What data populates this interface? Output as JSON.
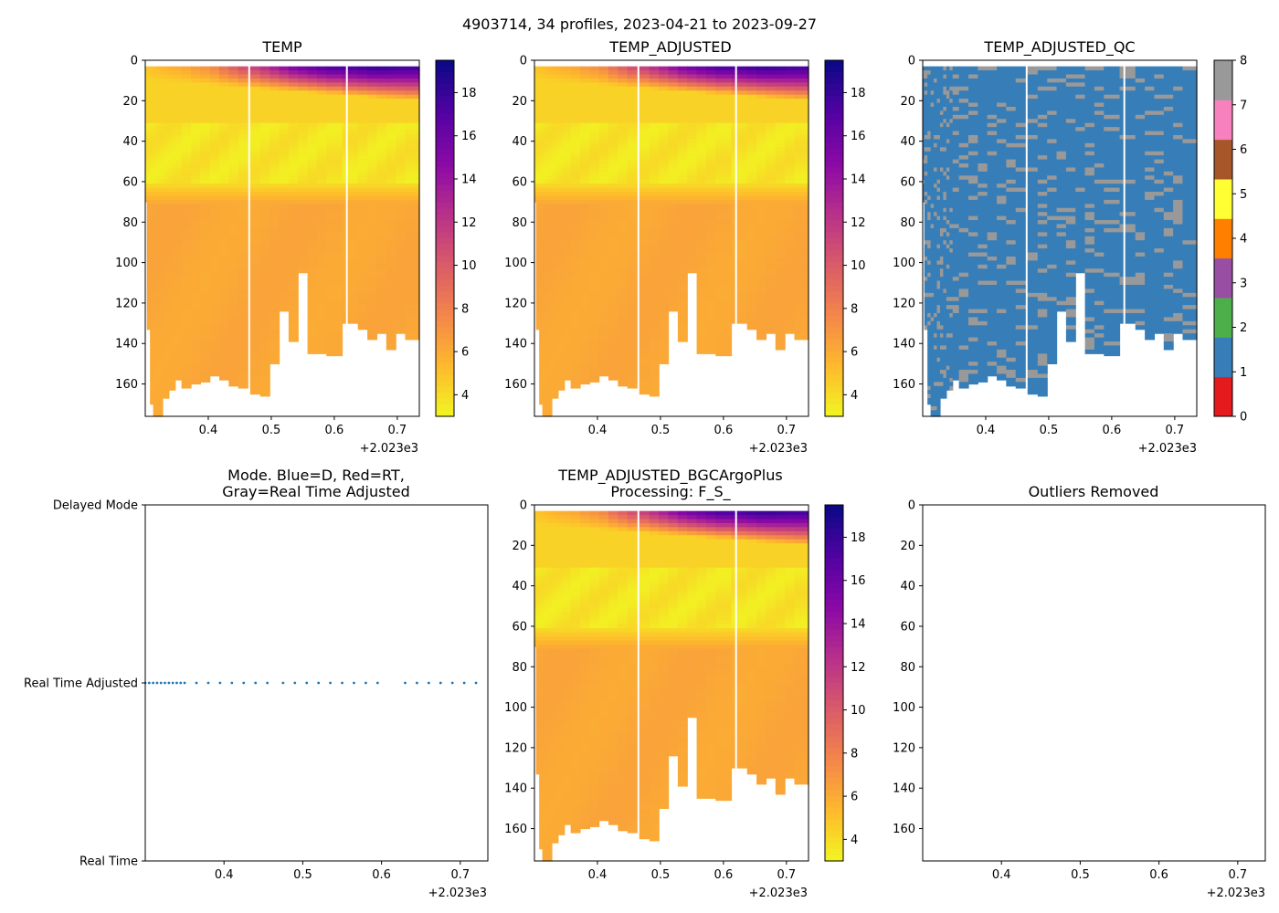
{
  "figure": {
    "suptitle": "4903714, 34 profiles, 2023-04-21 to 2023-09-27",
    "x_offset_label": "+2.023e3",
    "x_range": [
      0.3,
      0.735
    ],
    "x_ticks": [
      "0.4",
      "0.5",
      "0.6",
      "0.7"
    ],
    "y_range": [
      0,
      176
    ],
    "y_ticks": [
      "0",
      "20",
      "40",
      "60",
      "80",
      "100",
      "120",
      "140",
      "160"
    ],
    "gap_times": [
      0.465,
      0.62
    ]
  },
  "panels": {
    "temp": {
      "title": "TEMP"
    },
    "temp_adjusted": {
      "title": "TEMP_ADJUSTED"
    },
    "temp_adjusted_qc": {
      "title": "TEMP_ADJUSTED_QC"
    },
    "mode": {
      "title_line1": "Mode. Blue=D, Red=RT,",
      "title_line2": "Gray=Real Time Adjusted",
      "y_labels": [
        "Delayed Mode",
        "Real Time Adjusted",
        "Real Time"
      ]
    },
    "bgc": {
      "title_line1": "TEMP_ADJUSTED_BGCArgoPlus",
      "title_line2": "Processing: F_S_"
    },
    "outliers": {
      "title": "Outliers Removed"
    }
  },
  "colorbars": {
    "temp_ticks": [
      "4",
      "6",
      "8",
      "10",
      "12",
      "14",
      "16",
      "18"
    ],
    "qc_ticks": [
      "0",
      "1",
      "2",
      "3",
      "4",
      "5",
      "6",
      "7",
      "8"
    ],
    "qc_colors": [
      "#e41a1c",
      "#377eb8",
      "#4daf4a",
      "#984ea3",
      "#ff7f00",
      "#ffff33",
      "#a65628",
      "#f781bf",
      "#999999"
    ]
  },
  "chart_data": {
    "type": "heatmap",
    "title": "4903714, 34 profiles, 2023-04-21 to 2023-09-27",
    "variable_range": [
      3,
      19.5
    ],
    "colormap": "plasma_r",
    "profiles": [
      {
        "t": 0.3,
        "top": 3,
        "bottom": 70,
        "surface": 5.0
      },
      {
        "t": 0.305,
        "top": 3,
        "bottom": 133,
        "surface": 5.2
      },
      {
        "t": 0.31,
        "top": 3,
        "bottom": 170,
        "surface": 5.3
      },
      {
        "t": 0.315,
        "top": 3,
        "bottom": 176,
        "surface": 5.4
      },
      {
        "t": 0.32,
        "top": 3,
        "bottom": 176,
        "surface": 5.6
      },
      {
        "t": 0.325,
        "top": 3,
        "bottom": 176,
        "surface": 5.8
      },
      {
        "t": 0.33,
        "top": 3,
        "bottom": 167,
        "surface": 5.9
      },
      {
        "t": 0.335,
        "top": 3,
        "bottom": 167,
        "surface": 6.0
      },
      {
        "t": 0.34,
        "top": 3,
        "bottom": 163,
        "surface": 6.1
      },
      {
        "t": 0.345,
        "top": 3,
        "bottom": 163,
        "surface": 6.2
      },
      {
        "t": 0.35,
        "top": 3,
        "bottom": 158,
        "surface": 6.3
      },
      {
        "t": 0.365,
        "top": 3,
        "bottom": 162,
        "surface": 6.6
      },
      {
        "t": 0.38,
        "top": 3,
        "bottom": 160,
        "surface": 7.2
      },
      {
        "t": 0.395,
        "top": 3,
        "bottom": 159,
        "surface": 7.6
      },
      {
        "t": 0.41,
        "top": 3,
        "bottom": 156,
        "surface": 8.2
      },
      {
        "t": 0.425,
        "top": 3,
        "bottom": 158,
        "surface": 9.5
      },
      {
        "t": 0.44,
        "top": 3,
        "bottom": 161,
        "surface": 10.5
      },
      {
        "t": 0.455,
        "top": 3,
        "bottom": 162,
        "surface": 11.5
      },
      {
        "t": 0.475,
        "top": 3,
        "bottom": 165,
        "surface": 12.5
      },
      {
        "t": 0.49,
        "top": 3,
        "bottom": 166,
        "surface": 13.5
      },
      {
        "t": 0.505,
        "top": 3,
        "bottom": 150,
        "surface": 14.5
      },
      {
        "t": 0.52,
        "top": 3,
        "bottom": 124,
        "surface": 15.5
      },
      {
        "t": 0.535,
        "top": 3,
        "bottom": 139,
        "surface": 16.5
      },
      {
        "t": 0.55,
        "top": 3,
        "bottom": 105,
        "surface": 17.0
      },
      {
        "t": 0.565,
        "top": 3,
        "bottom": 145,
        "surface": 17.5
      },
      {
        "t": 0.58,
        "top": 3,
        "bottom": 145,
        "surface": 18.0
      },
      {
        "t": 0.595,
        "top": 3,
        "bottom": 146,
        "surface": 18.5
      },
      {
        "t": 0.63,
        "top": 3,
        "bottom": 130,
        "surface": 18.5
      },
      {
        "t": 0.645,
        "top": 3,
        "bottom": 133,
        "surface": 18.7
      },
      {
        "t": 0.66,
        "top": 3,
        "bottom": 138,
        "surface": 19.0
      },
      {
        "t": 0.675,
        "top": 3,
        "bottom": 135,
        "surface": 19.0
      },
      {
        "t": 0.69,
        "top": 3,
        "bottom": 143,
        "surface": 18.8
      },
      {
        "t": 0.705,
        "top": 3,
        "bottom": 135,
        "surface": 18.6
      },
      {
        "t": 0.72,
        "top": 3,
        "bottom": 138,
        "surface": 18.5
      }
    ],
    "mode_points_t": [
      0.3,
      0.305,
      0.31,
      0.315,
      0.32,
      0.325,
      0.33,
      0.335,
      0.34,
      0.345,
      0.35,
      0.365,
      0.38,
      0.395,
      0.41,
      0.425,
      0.44,
      0.455,
      0.475,
      0.49,
      0.505,
      0.52,
      0.535,
      0.55,
      0.565,
      0.58,
      0.595,
      0.63,
      0.645,
      0.66,
      0.675,
      0.69,
      0.705,
      0.72
    ],
    "mode_value": "Real Time Adjusted",
    "qc_dominant": 1,
    "qc_secondary": 8
  }
}
